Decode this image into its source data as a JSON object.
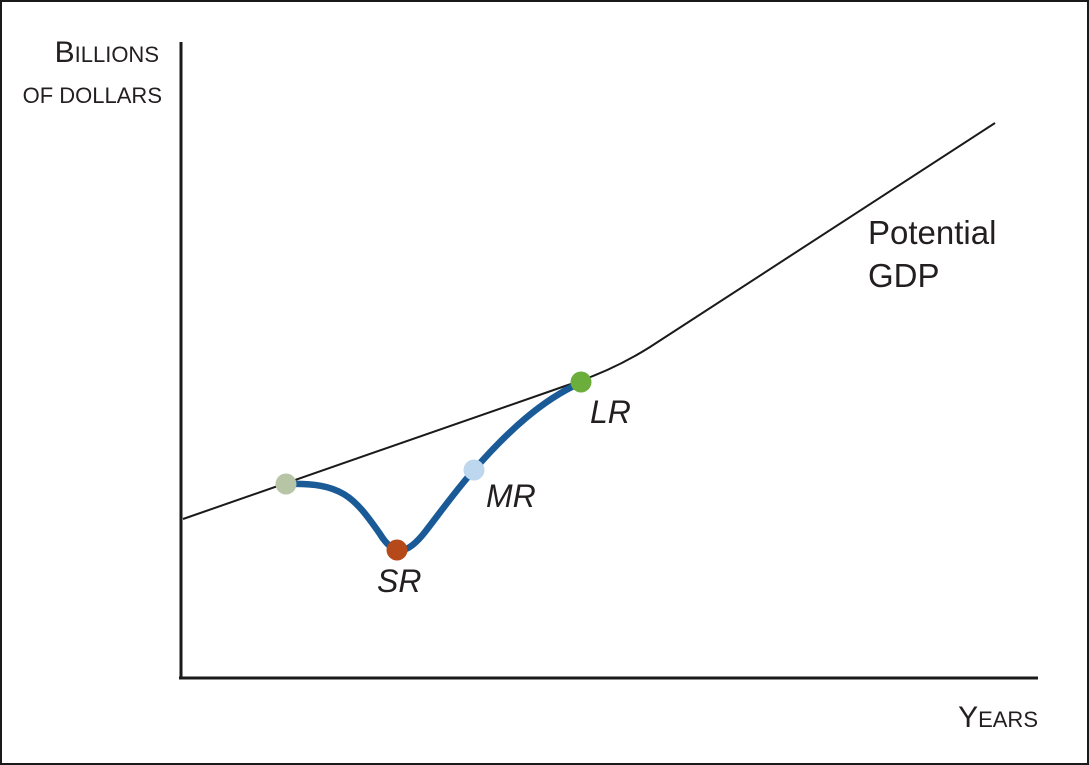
{
  "y_axis": {
    "line1_initial": "B",
    "line1_rest": "ILLIONS",
    "line2": "OF DOLLARS"
  },
  "x_axis": {
    "initial": "Y",
    "rest": "EARS"
  },
  "potential_gdp": {
    "line1": "Potential",
    "line2": "GDP",
    "color": "#1a1a1a"
  },
  "path": {
    "color": "#1a5a96"
  },
  "points": [
    {
      "id": "start",
      "label": "",
      "color": "#b7c4a6"
    },
    {
      "id": "sr",
      "label": "SR",
      "color": "#b5491a"
    },
    {
      "id": "mr",
      "label": "MR",
      "color": "#bcd7ee"
    },
    {
      "id": "lr",
      "label": "LR",
      "color": "#6cae3b"
    }
  ]
}
